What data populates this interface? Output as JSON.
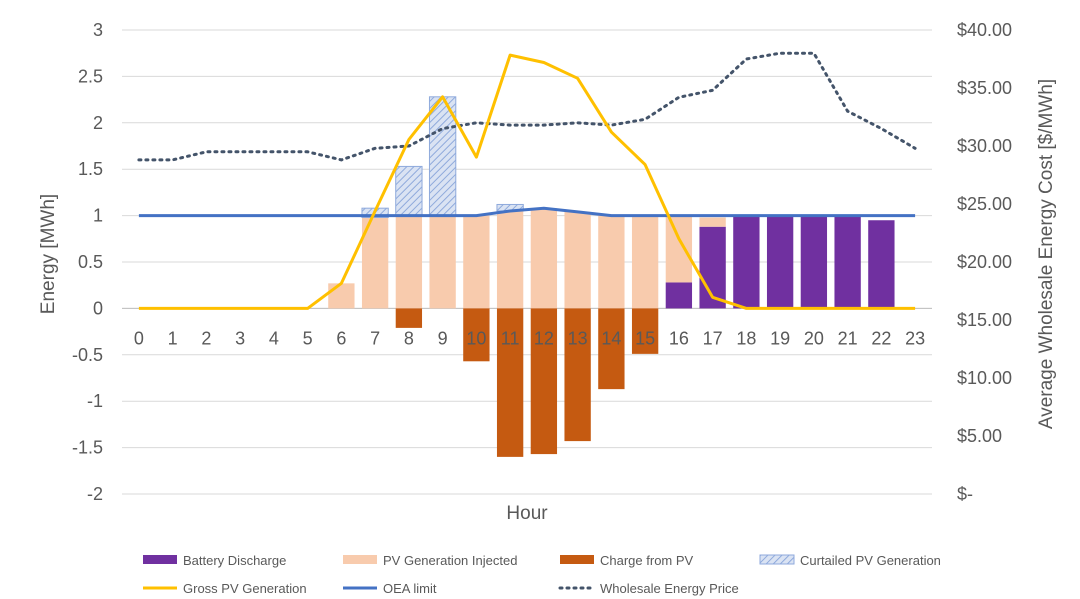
{
  "chart_data": {
    "type": "bar",
    "title": "",
    "xlabel": "Hour",
    "ylabel": "Energy [MWh]",
    "y2label": "Average Wholesale Energy Cost [$/MWh]",
    "ylim": [
      -2,
      3
    ],
    "y2lim": [
      0,
      40
    ],
    "y_ticks": [
      -2,
      -1.5,
      -1,
      -0.5,
      0,
      0.5,
      1,
      1.5,
      2,
      2.5,
      3
    ],
    "y_tick_labels": [
      "-2",
      "-1.5",
      "-1",
      "-0.5",
      "0",
      "0.5",
      "1",
      "1.5",
      "2",
      "2.5",
      "3"
    ],
    "y2_ticks": [
      0,
      5,
      10,
      15,
      20,
      25,
      30,
      35,
      40
    ],
    "y2_tick_labels": [
      "$-",
      "$5.00",
      "$10.00",
      "$15.00",
      "$20.00",
      "$25.00",
      "$30.00",
      "$35.00",
      "$40.00"
    ],
    "grid": true,
    "legend_position": "bottom",
    "categories": [
      "0",
      "1",
      "2",
      "3",
      "4",
      "5",
      "6",
      "7",
      "8",
      "9",
      "10",
      "11",
      "12",
      "13",
      "14",
      "15",
      "16",
      "17",
      "18",
      "19",
      "20",
      "21",
      "22",
      "23"
    ],
    "series": [
      {
        "name": "Battery Discharge",
        "kind": "bar",
        "axis": "left",
        "color": "#7030a0",
        "values": [
          0,
          0,
          0,
          0,
          0,
          0,
          0,
          0,
          0,
          0,
          0,
          0,
          0,
          0,
          0,
          0,
          0.28,
          0.88,
          0.99,
          0.99,
          0.99,
          0.99,
          0.95,
          0
        ]
      },
      {
        "name": "PV Generation Injected",
        "kind": "bar",
        "axis": "left",
        "color": "#f8cbad",
        "values": [
          0,
          0,
          0,
          0,
          0,
          0,
          0.27,
          0.98,
          1.0,
          1.0,
          1.0,
          1.05,
          1.08,
          1.04,
          1.0,
          1.0,
          0.72,
          0.1,
          0,
          0,
          0,
          0,
          0,
          0
        ]
      },
      {
        "name": "Charge from PV",
        "kind": "bar",
        "axis": "left",
        "color": "#c55a11",
        "values": [
          0,
          0,
          0,
          0,
          0,
          0,
          0,
          0,
          -0.21,
          0,
          -0.57,
          -1.6,
          -1.57,
          -1.43,
          -0.87,
          -0.49,
          0,
          0,
          0,
          0,
          0,
          0,
          0,
          0
        ]
      },
      {
        "name": "Curtailed PV Generation",
        "kind": "bar",
        "axis": "left",
        "color": "#8faadc",
        "values": [
          0,
          0,
          0,
          0,
          0,
          0,
          0,
          0.1,
          0.53,
          1.28,
          0,
          0.07,
          0,
          0,
          0,
          0,
          0,
          0,
          0,
          0,
          0,
          0,
          0,
          0
        ]
      },
      {
        "name": "Gross PV Generation",
        "kind": "line",
        "axis": "left",
        "color": "#ffc000",
        "values": [
          0,
          0,
          0,
          0,
          0,
          0,
          0.27,
          1.05,
          1.82,
          2.28,
          1.63,
          2.73,
          2.65,
          2.48,
          1.9,
          1.55,
          0.75,
          0.12,
          0,
          0,
          0,
          0,
          0,
          0
        ]
      },
      {
        "name": "OEA limit",
        "kind": "line",
        "axis": "left",
        "color": "#4472c4",
        "values": [
          1,
          1,
          1,
          1,
          1,
          1,
          1,
          1,
          1,
          1,
          1,
          1.05,
          1.08,
          1.04,
          1,
          1,
          1,
          1,
          1,
          1,
          1,
          1,
          1,
          1
        ]
      },
      {
        "name": "Wholesale Energy Price",
        "kind": "dotted-line",
        "axis": "right",
        "color": "#44546a",
        "values": [
          28.8,
          28.8,
          29.5,
          29.5,
          29.5,
          29.5,
          28.8,
          29.8,
          30.0,
          31.5,
          32.0,
          31.8,
          31.8,
          32.0,
          31.8,
          32.3,
          34.2,
          34.8,
          37.5,
          38.0,
          38.0,
          33.0,
          31.5,
          29.8
        ]
      }
    ]
  }
}
